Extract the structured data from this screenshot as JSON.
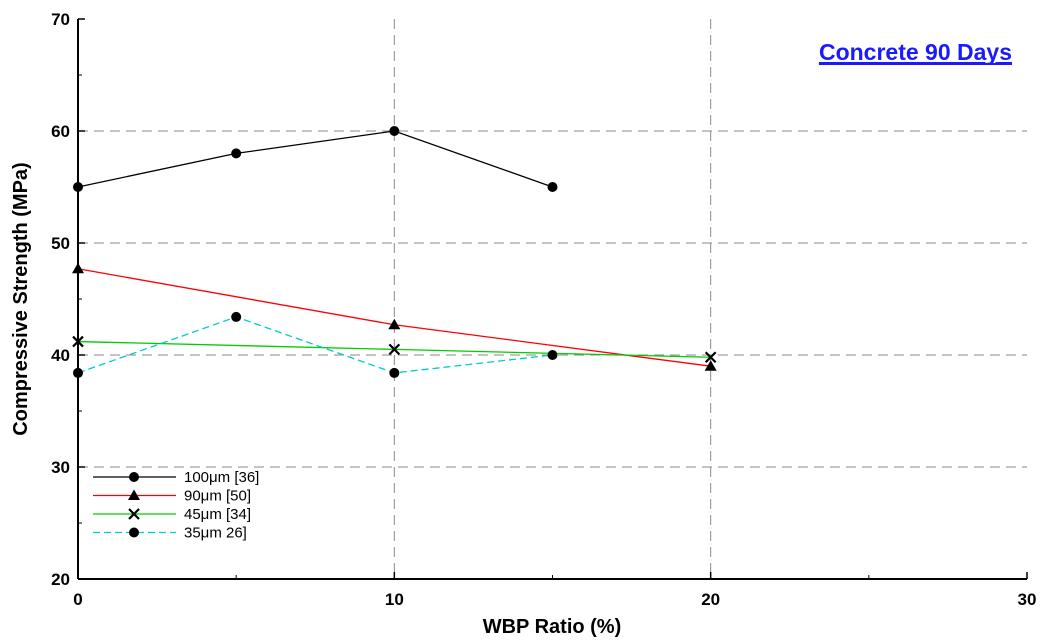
{
  "chart_data": {
    "type": "line",
    "title": "Concrete 90 Days",
    "xlabel": "WBP Ratio (%)",
    "ylabel": "Compressive Strength (MPa)",
    "xlim": [
      0,
      30
    ],
    "ylim": [
      20,
      70
    ],
    "xticks": [
      "0",
      "10",
      "20",
      "30"
    ],
    "yticks": [
      "20",
      "30",
      "40",
      "50",
      "60",
      "70"
    ],
    "grid": "dashed",
    "legend_position": "bottom-left",
    "series": [
      {
        "name": "100μm [36]",
        "color": "#000000",
        "marker": "circle",
        "dash": "solid",
        "x": [
          0,
          5,
          10,
          15
        ],
        "y": [
          55,
          58,
          60,
          55
        ]
      },
      {
        "name": "90μm [50]",
        "color": "#ff0000",
        "marker": "triangle",
        "dash": "solid",
        "x": [
          0,
          10,
          20
        ],
        "y": [
          47.7,
          42.7,
          39.0
        ]
      },
      {
        "name": "45μm [34]",
        "color": "#00cc00",
        "marker": "x",
        "dash": "solid",
        "x": [
          0,
          10,
          20
        ],
        "y": [
          41.2,
          40.5,
          39.8
        ]
      },
      {
        "name": "35μm 26]",
        "color": "#00cccc",
        "marker": "circle",
        "dash": "dashed",
        "x": [
          0,
          5,
          10,
          15
        ],
        "y": [
          38.4,
          43.4,
          38.4,
          40.0
        ]
      }
    ]
  }
}
